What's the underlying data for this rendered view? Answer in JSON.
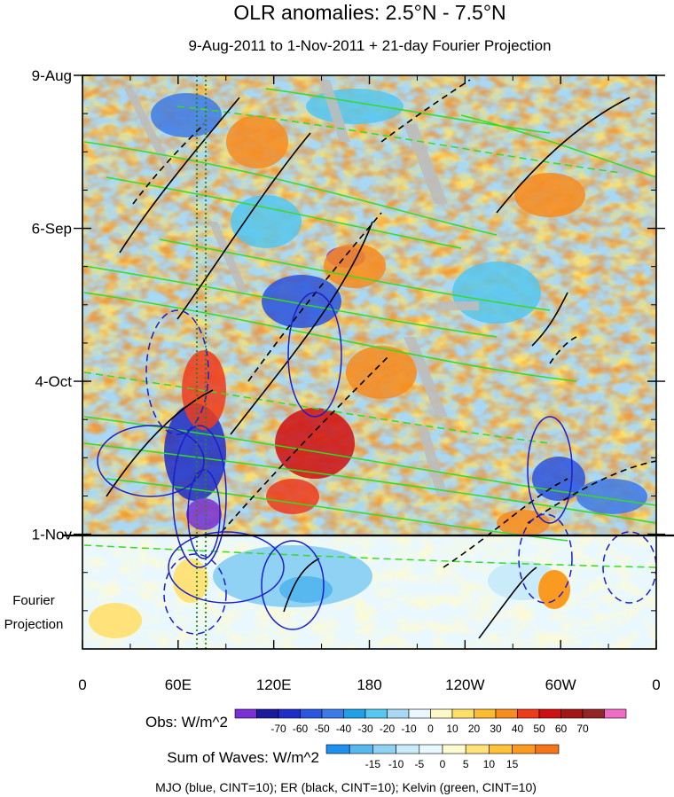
{
  "chart_data": {
    "type": "heatmap",
    "title": "OLR anomalies: 2.5°N - 7.5°N",
    "subtitle": "9-Aug-2011 to 1-Nov-2011 + 21-day Fourier Projection",
    "x_ticks": [
      "0",
      "60E",
      "120E",
      "180",
      "120W",
      "60W",
      "0"
    ],
    "x_values": [
      0,
      60,
      120,
      180,
      240,
      300,
      360
    ],
    "xlim": [
      0,
      360
    ],
    "y_ticks": [
      "9-Aug",
      "6-Sep",
      "4-Oct",
      "1-Nov"
    ],
    "y_dates": [
      "2011-08-09",
      "2011-09-06",
      "2011-10-04",
      "2011-11-01"
    ],
    "ylim": [
      "2011-08-09",
      "2011-11-22"
    ],
    "projection_label": [
      "Fourier",
      "Projection"
    ],
    "obs_colorbar": {
      "label": "Obs: W/m^2",
      "ticks": [
        "-70",
        "-60",
        "-50",
        "-40",
        "-30",
        "-20",
        "-10",
        "0",
        "10",
        "20",
        "30",
        "40",
        "50",
        "60",
        "70"
      ],
      "colors": [
        "#7a2fd6",
        "#1a1a9c",
        "#1e2fc8",
        "#2a55e0",
        "#3d7be8",
        "#1f9fe6",
        "#55c7f0",
        "#a9d8f5",
        "#e9f7ff",
        "#fff9c8",
        "#ffe066",
        "#fdbb2f",
        "#f78b1e",
        "#ee3b1c",
        "#cf1013",
        "#a51616",
        "#922525",
        "#f06cc4"
      ]
    },
    "waves_colorbar": {
      "label": "Sum of Waves: W/m^2",
      "ticks": [
        "-15",
        "-10",
        "-5",
        "0",
        "5",
        "10",
        "15"
      ],
      "colors": [
        "#1e90f0",
        "#57b7ef",
        "#8fd2f3",
        "#c9ebfa",
        "#e9f8ff",
        "#fffbd0",
        "#ffe27a",
        "#ffc238",
        "#fb9a20",
        "#f5761a"
      ]
    },
    "contour_legend": "MJO (blue, CINT=10); ER (black, CINT=10); Kelvin (green, CINT=10)",
    "series": [
      {
        "name": "MJO",
        "color": "#1d1dcc"
      },
      {
        "name": "ER",
        "color": "#000000"
      },
      {
        "name": "Kelvin",
        "color": "#33dd22"
      }
    ],
    "observed_period": [
      "2011-08-09",
      "2011-11-01"
    ],
    "projection_days": 21
  }
}
